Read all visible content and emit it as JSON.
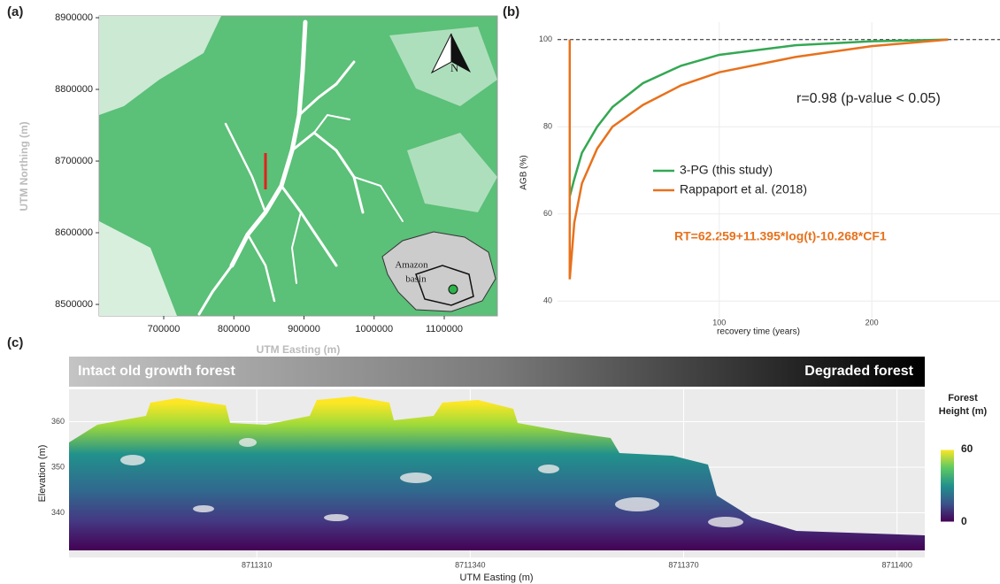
{
  "panel_labels": [
    "(a)",
    "(b)",
    "(c)"
  ],
  "chart_data": [
    {
      "type": "map",
      "xlabel": "UTM Easting (m)",
      "ylabel": "UTM Northing (m)",
      "xlim": [
        607900,
        1175700
      ],
      "xticks": [
        700000,
        800000,
        900000,
        1000000,
        1100000
      ],
      "ylim": [
        8484000,
        8902500
      ],
      "yticks": [
        8500000,
        8600000,
        8700000,
        8800000,
        8900000
      ],
      "north_label": "N",
      "inset_label": [
        "Amazon",
        "basin"
      ]
    },
    {
      "type": "line",
      "xlabel": "recovery time (years)",
      "ylabel": "AGB (%)",
      "xlim": [
        -6,
        284
      ],
      "xticks": [
        100,
        200
      ],
      "ylim": [
        36,
        104
      ],
      "yticks": [
        40,
        60,
        80,
        100
      ],
      "hline": 100,
      "grid": true,
      "legend": "center",
      "series": [
        {
          "name": "3-PG (this study)",
          "color": "#34a853",
          "x": [
            2,
            5,
            10,
            20,
            30,
            50,
            75,
            100,
            150,
            200,
            250
          ],
          "values": [
            64,
            68,
            74,
            80,
            84.5,
            90,
            94,
            96.5,
            98.7,
            99.6,
            100
          ]
        },
        {
          "name": "Rappaport et al. (2018)",
          "color": "#e8711c",
          "x": [
            2,
            2,
            5,
            10,
            20,
            30,
            50,
            75,
            100,
            150,
            200,
            250
          ],
          "values": [
            100,
            45,
            58,
            67,
            75,
            80,
            85,
            89.5,
            92.5,
            96,
            98.5,
            100
          ]
        }
      ],
      "annotations": [
        "r=0.98 (p-value < 0.05)",
        "RT=62.259+11.395*log(t)-10.268*CF1"
      ]
    },
    {
      "type": "point-cloud",
      "xlabel": "UTM Easting (m)",
      "ylabel": "Elevation (m)",
      "xlim": [
        8711283.6,
        8711403.9
      ],
      "xticks": [
        8711310,
        8711340,
        8711370,
        8711400
      ],
      "ylim": [
        330.2,
        367.1
      ],
      "yticks": [
        340,
        350,
        360
      ],
      "grid": true,
      "banner": [
        "Intact old growth forest",
        "Degraded forest"
      ],
      "colorbar": {
        "title": [
          "Forest",
          "Height (m)"
        ],
        "ticks": [
          0,
          60
        ]
      }
    }
  ]
}
